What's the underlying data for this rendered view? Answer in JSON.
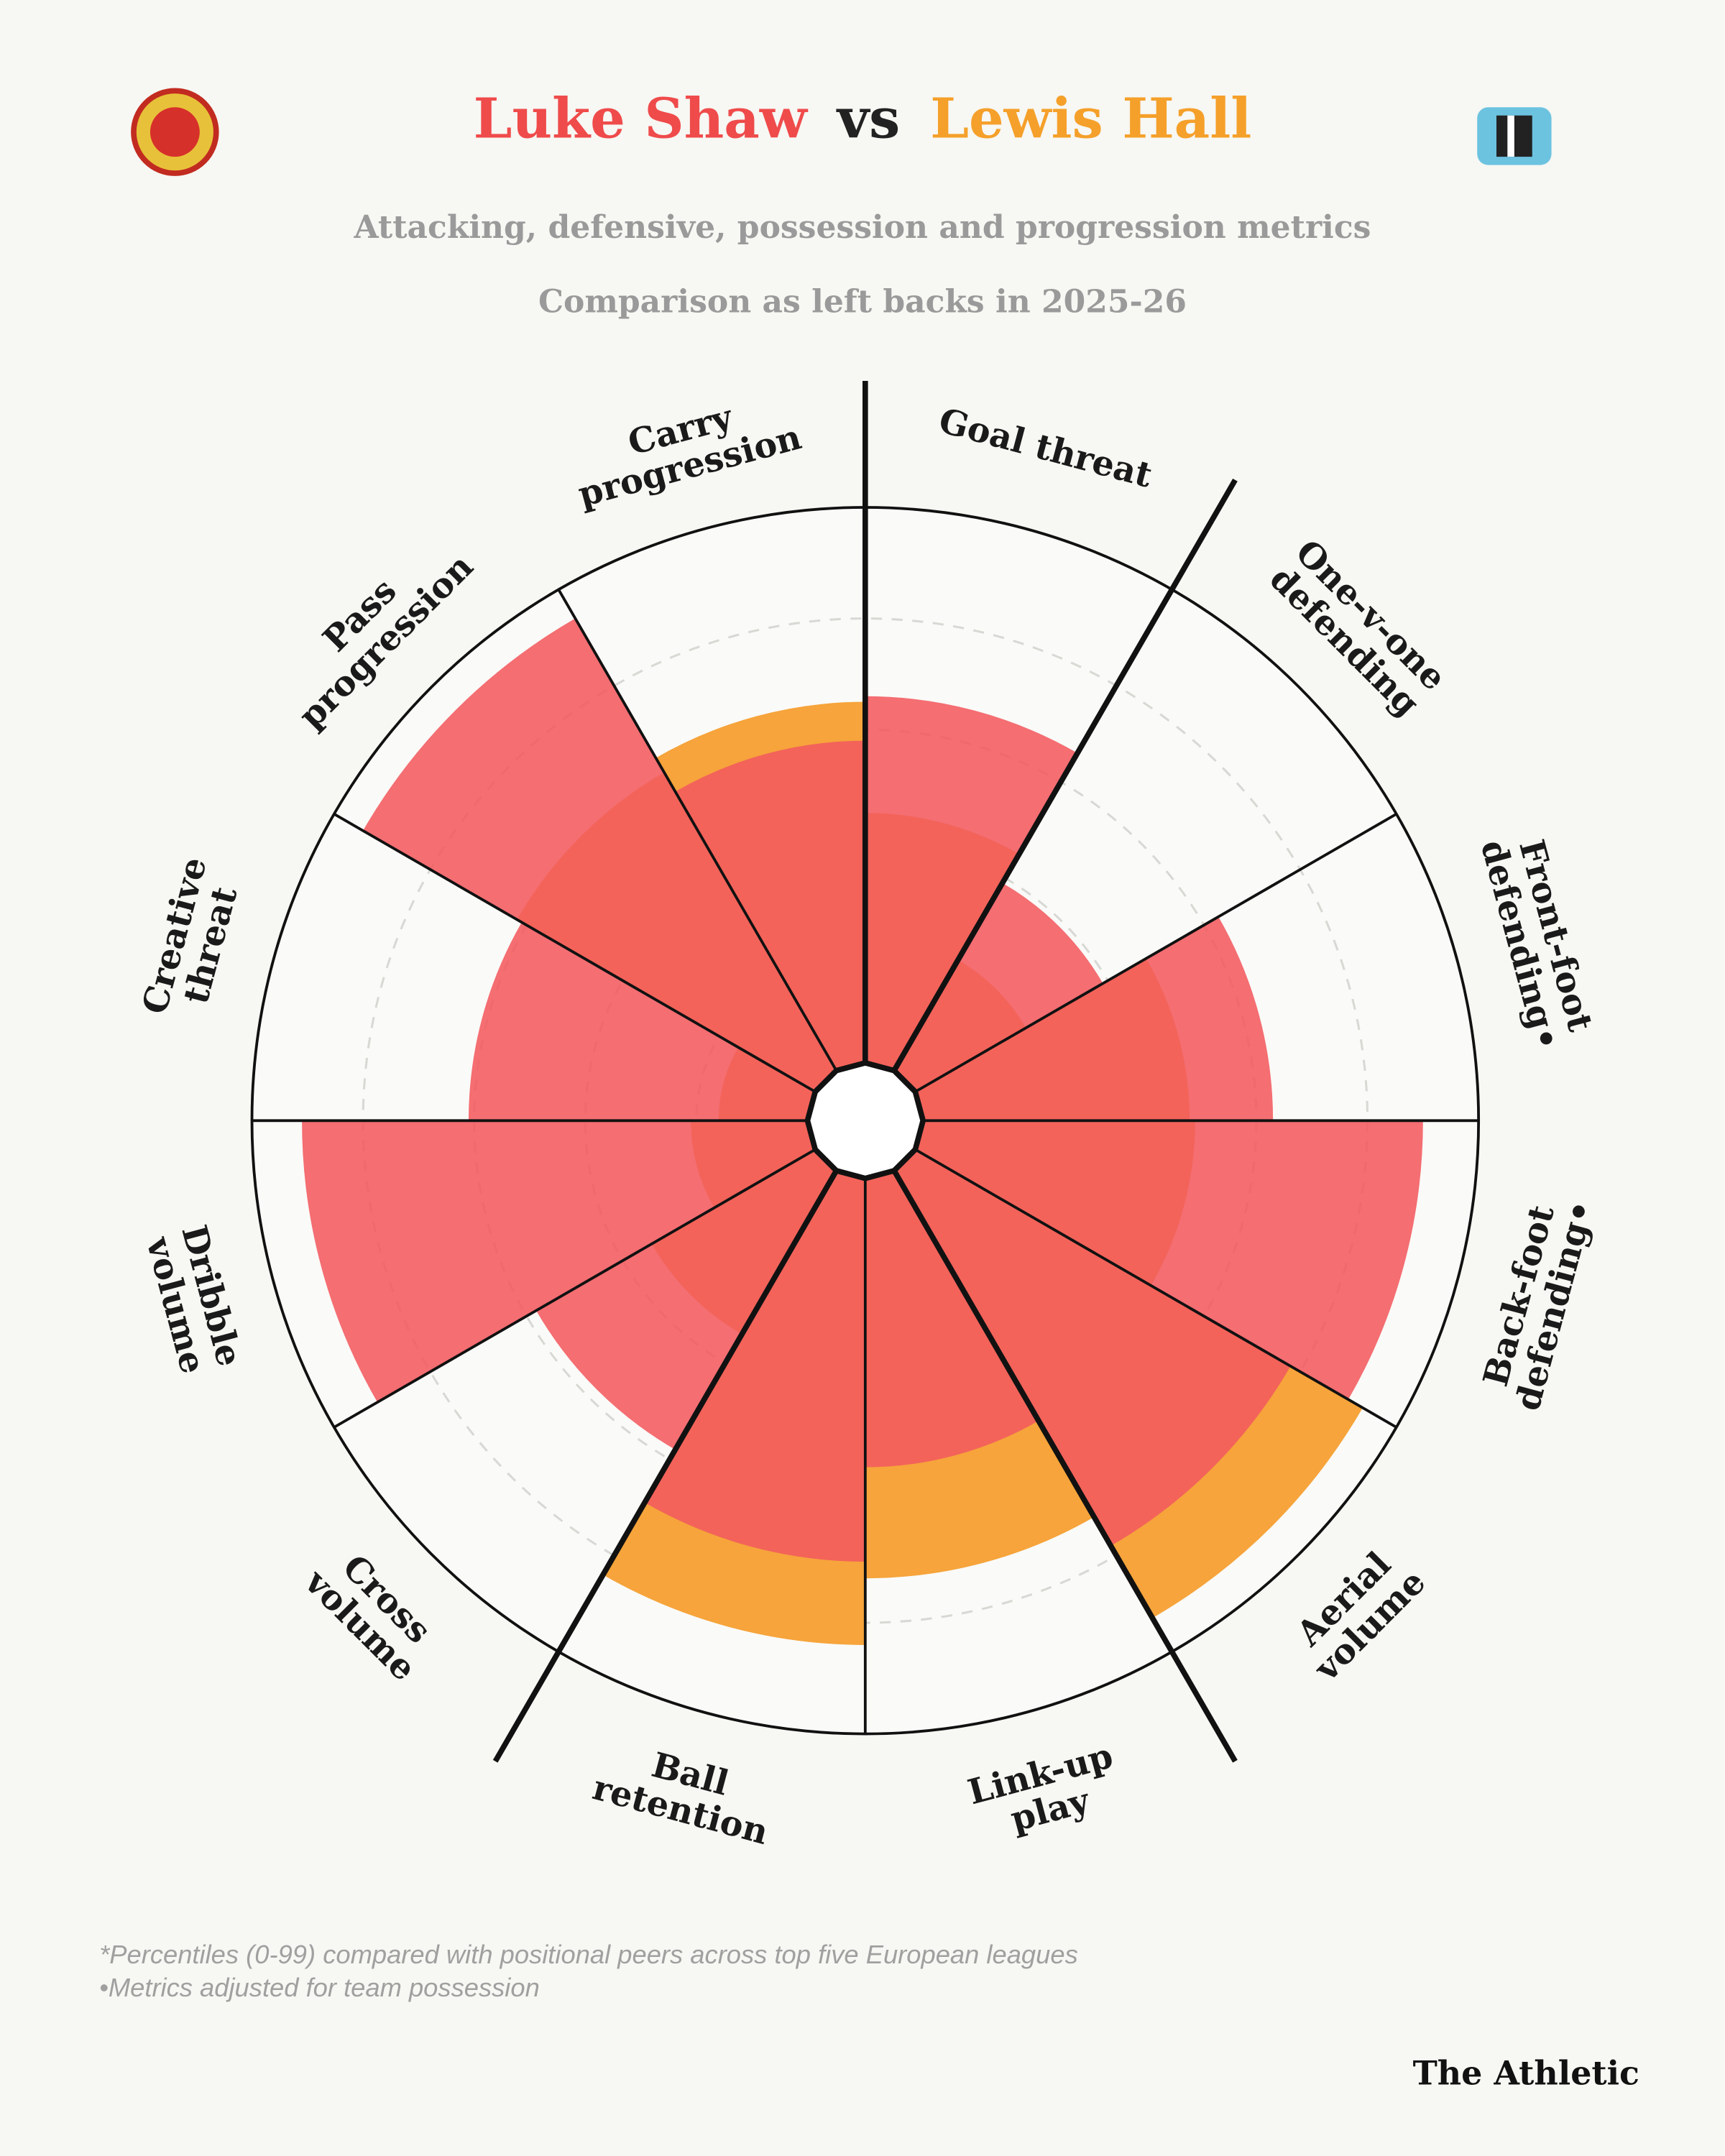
{
  "chart_data": {
    "type": "polar_bar",
    "title_separator": "vs",
    "subtitle": "Attacking, defensive, possession and progression metrics",
    "subtitle2": "Comparison as left backs in 2025-26",
    "categories": [
      [
        "Goal threat"
      ],
      [
        "One-v-one",
        "defending"
      ],
      [
        "Front-foot",
        "defending•"
      ],
      [
        "Back-foot",
        "defending•"
      ],
      [
        "Aerial",
        "volume"
      ],
      [
        "Link-up",
        "play"
      ],
      [
        "Ball",
        "retention"
      ],
      [
        "Cross",
        "volume"
      ],
      [
        "Dribble",
        "volume"
      ],
      [
        "Creative",
        "threat"
      ],
      [
        "Pass",
        "progression"
      ],
      [
        "Carry",
        "progression"
      ]
    ],
    "series": [
      {
        "name": "Luke Shaw",
        "color": "#f25a5f",
        "values": [
          66,
          39,
          63,
          90,
          78,
          52,
          69,
          58,
          91,
          61,
          94,
          58
        ]
      },
      {
        "name": "Lewis Hall",
        "color": "#f6a43b",
        "values": [
          45,
          23,
          48,
          49,
          93,
          72,
          84,
          34,
          21,
          16,
          62,
          65
        ]
      }
    ],
    "ylim": [
      0,
      100
    ],
    "yticks": [
      20,
      40,
      60,
      80
    ],
    "grid": true,
    "footnotes": [
      "*Percentiles (0-99) compared with positional peers across top five European leagues",
      "•Metrics adjusted for team possession"
    ],
    "source": "The Athletic"
  }
}
